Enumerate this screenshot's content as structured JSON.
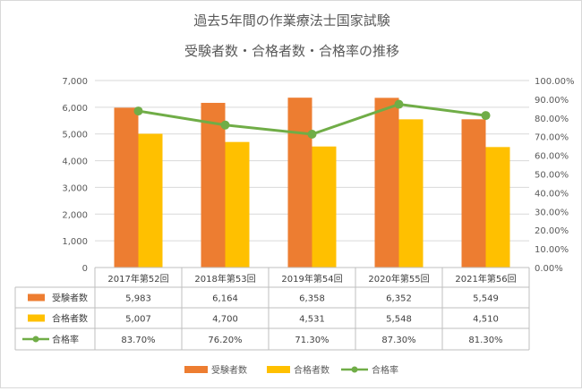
{
  "chart_data": {
    "type": "bar",
    "title_line1": "過去5年間の作業療法士国家試験",
    "title_line2": "受験者数・合格者数・合格率の推移",
    "categories": [
      "2017年第52回",
      "2018年第53回",
      "2019年第54回",
      "2020年第55回",
      "2021年第56回"
    ],
    "series": [
      {
        "name": "受験者数",
        "type": "bar",
        "axis": "left",
        "color": "#ED7D31",
        "values": [
          5983,
          6164,
          6358,
          6352,
          5549
        ],
        "labels": [
          "5,983",
          "6,164",
          "6,358",
          "6,352",
          "5,549"
        ]
      },
      {
        "name": "合格者数",
        "type": "bar",
        "axis": "left",
        "color": "#FFC000",
        "values": [
          5007,
          4700,
          4531,
          5548,
          4510
        ],
        "labels": [
          "5,007",
          "4,700",
          "4,531",
          "5,548",
          "4,510"
        ]
      },
      {
        "name": "合格率",
        "type": "line",
        "axis": "right",
        "color": "#70AD47",
        "values": [
          83.7,
          76.2,
          71.3,
          87.3,
          81.3
        ],
        "labels": [
          "83.70%",
          "76.20%",
          "71.30%",
          "87.30%",
          "81.30%"
        ]
      }
    ],
    "y_left": {
      "ylim": [
        0,
        7000
      ],
      "ticks": [
        "0",
        "1,000",
        "2,000",
        "3,000",
        "4,000",
        "5,000",
        "6,000",
        "7,000"
      ]
    },
    "y_right": {
      "ylim": [
        0,
        100
      ],
      "ticks": [
        "0.00%",
        "10.00%",
        "20.00%",
        "30.00%",
        "40.00%",
        "50.00%",
        "60.00%",
        "70.00%",
        "80.00%",
        "90.00%",
        "100.00%"
      ]
    },
    "grid": true,
    "legend": "bottom",
    "data_table": true
  }
}
